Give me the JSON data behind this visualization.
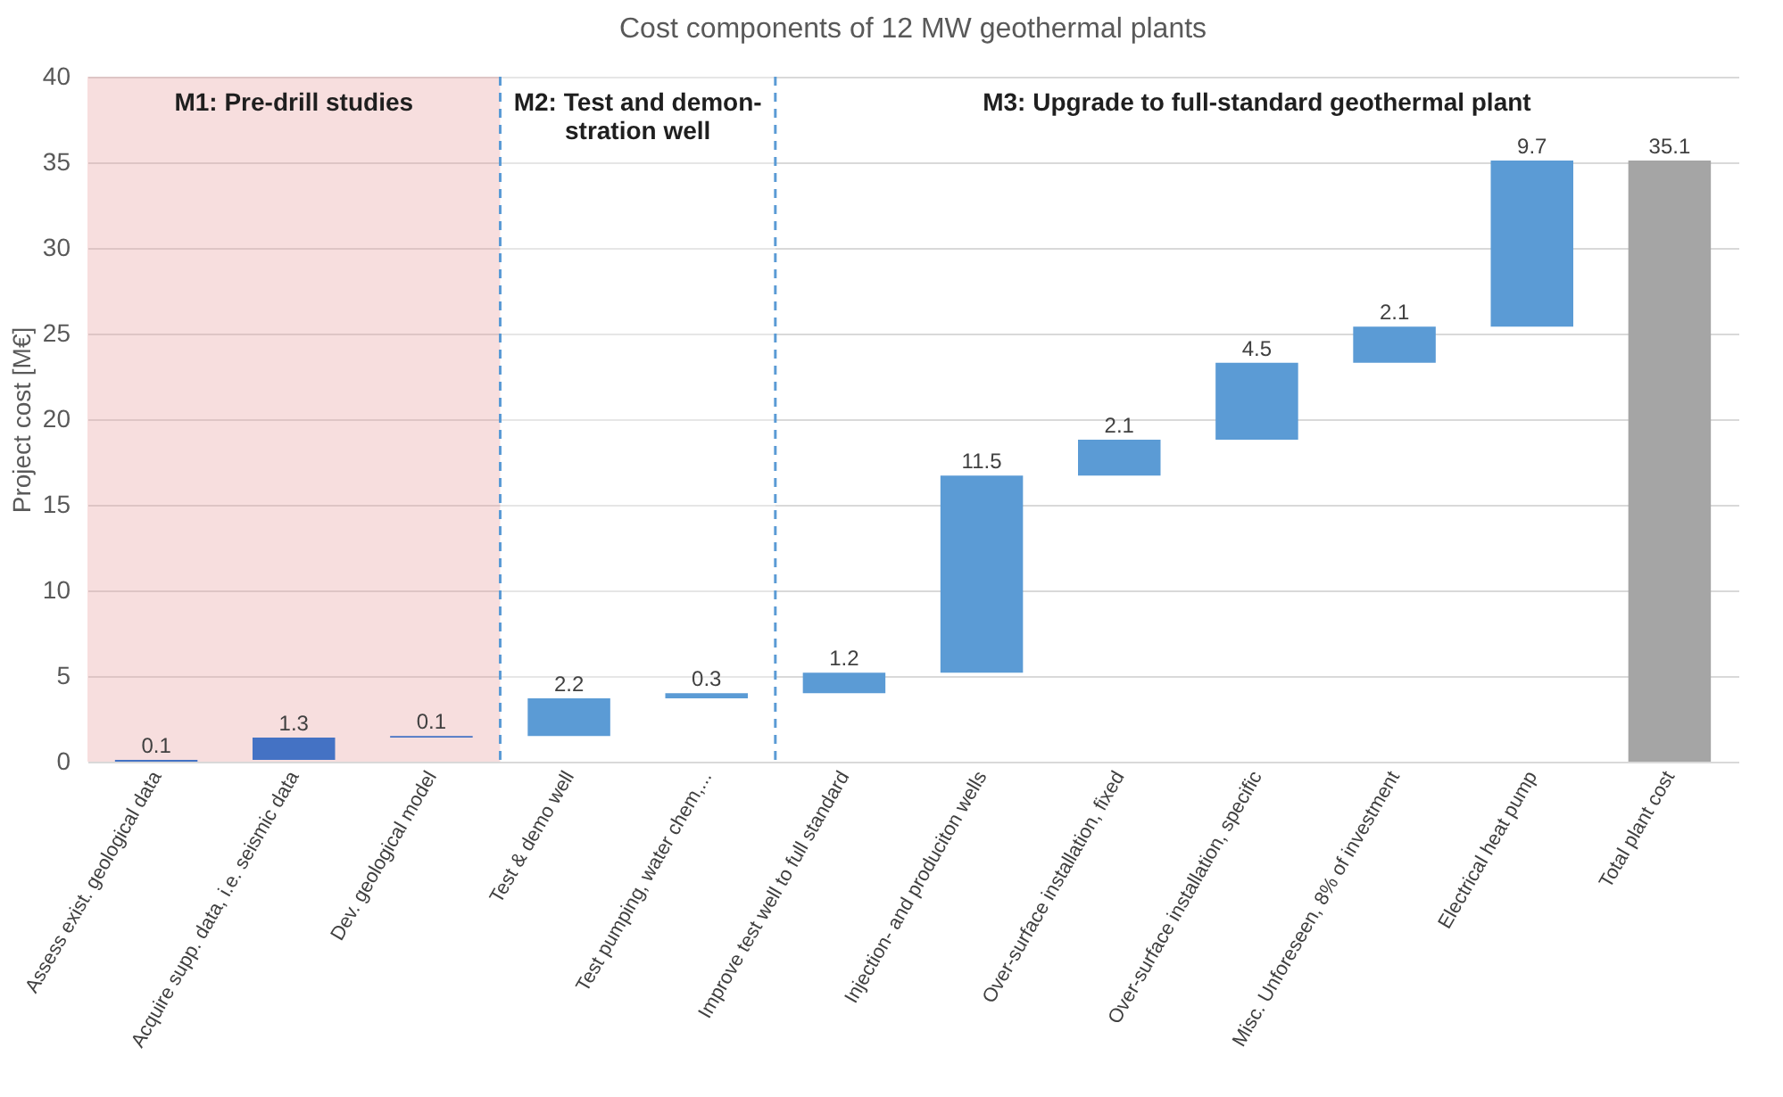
{
  "chart_data": {
    "type": "bar",
    "title": "Cost components of 12 MW geothermal plants",
    "ylabel": "Project cost [M€]",
    "categories": [
      "Assess exist. geological data",
      "Acquire supp. data, i.e. seismic data",
      "Dev. geological model",
      "Test & demo well",
      "Test pumping, water chem,...",
      "Improve test well to full standard",
      "Injection- and produciton wells",
      "Over-surface installation, fixed",
      "Over-surface installation, specific",
      "Misc. Unforeseen, 8% of investment",
      "Electrical heat pump",
      "Total plant cost"
    ],
    "values": [
      0.1,
      1.3,
      0.1,
      2.2,
      0.3,
      1.2,
      11.5,
      2.1,
      4.5,
      2.1,
      9.7,
      35.1
    ],
    "base": [
      0,
      0.1,
      1.4,
      1.5,
      3.7,
      4.0,
      5.2,
      16.7,
      18.8,
      23.3,
      25.4,
      0
    ],
    "colors": [
      "#4472c4",
      "#4472c4",
      "#4472c4",
      "#5b9bd5",
      "#5b9bd5",
      "#5b9bd5",
      "#5b9bd5",
      "#5b9bd5",
      "#5b9bd5",
      "#5b9bd5",
      "#5b9bd5",
      "#a5a5a5"
    ],
    "data_labels": true,
    "bands": [
      {
        "axis": "x",
        "from": "Assess exist. geological data",
        "to": "Dev. geological model",
        "label": "M1: Pre-drill studies",
        "color": "#e8a0a0"
      },
      {
        "axis": "x",
        "from": "Test & demo well",
        "to": "Test pumping, water chem,...",
        "label": "M2: Test and demon-\nstration well",
        "color": "#ffffff"
      }
    ],
    "annotations": [
      "M3: Upgrade to full-standard geothermal plant"
    ],
    "ylim": [
      0,
      40
    ],
    "yticks": [
      0,
      5,
      10,
      15,
      20,
      25,
      30,
      35,
      40
    ],
    "grid": "y"
  }
}
